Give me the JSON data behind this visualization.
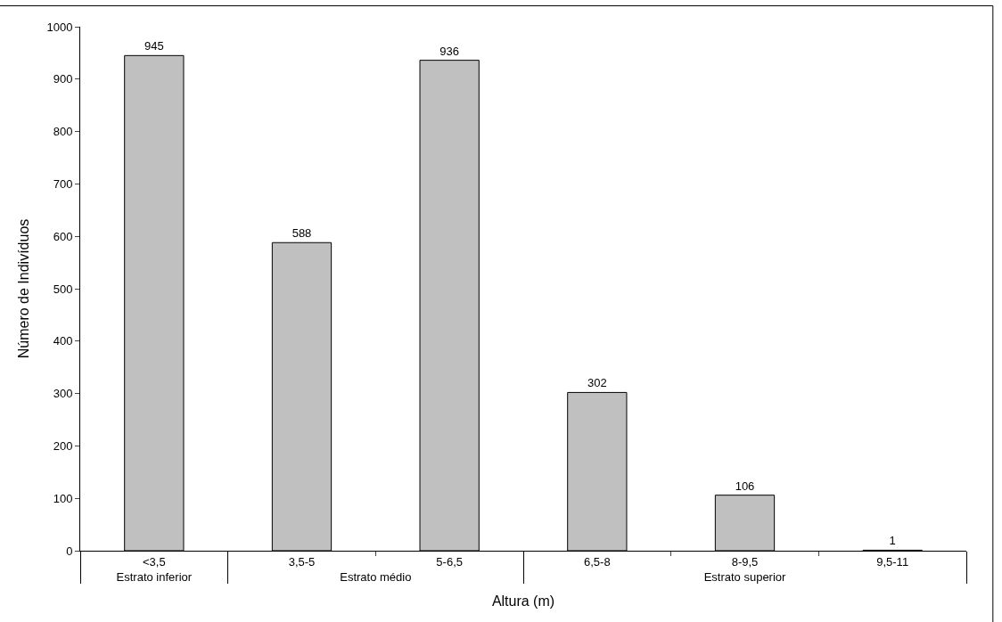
{
  "chart_data": {
    "type": "bar",
    "xlabel": "Altura (m)",
    "ylabel": "Número de Indivíduos",
    "categories": [
      "<3,5",
      "3,5-5",
      "5-6,5",
      "6,5-8",
      "8-9,5",
      "9,5-11"
    ],
    "values": [
      945,
      588,
      936,
      302,
      106,
      1
    ],
    "color": "#c0c0c0",
    "ylim": [
      0,
      1000
    ],
    "yticks": [
      0,
      100,
      200,
      300,
      400,
      500,
      600,
      700,
      800,
      900,
      1000
    ],
    "data_labels": true,
    "annotations": [
      "Estrato inferior",
      "Estrato médio",
      "Estrato superior"
    ]
  }
}
